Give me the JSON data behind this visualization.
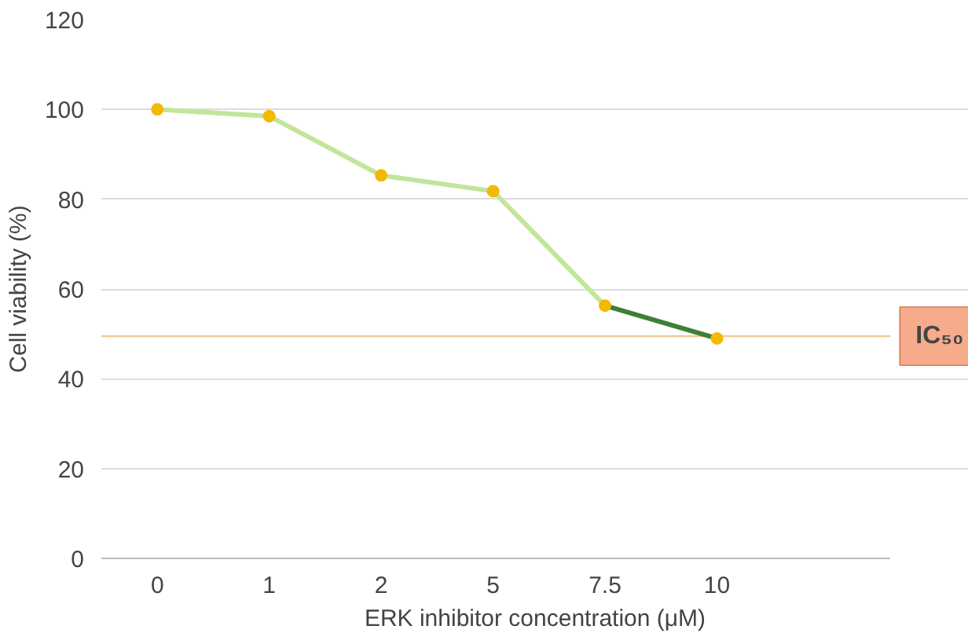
{
  "chart_data": {
    "type": "line",
    "xlabel": "ERK inhibitor concentration (μM)",
    "ylabel": "Cell viability (%)",
    "categories": [
      "0",
      "1",
      "2",
      "5",
      "7.5",
      "10"
    ],
    "series": [
      {
        "color": "#c3e59a",
        "values": [
          100,
          98.5,
          85.3,
          81.8,
          56.3,
          null
        ]
      },
      {
        "color": "#3f7f36",
        "values": [
          null,
          null,
          null,
          null,
          56.3,
          49
        ]
      },
      {
        "type": "scatter",
        "color": "#f5b800",
        "marker": "circle",
        "values": [
          100,
          98.5,
          85.3,
          81.8,
          56.3,
          49
        ]
      }
    ],
    "ylim": [
      0,
      120
    ],
    "yticks": [
      0,
      20,
      40,
      60,
      80,
      100,
      120
    ],
    "grid": "y",
    "ref_lines": [
      {
        "axis": "y",
        "value": 49.5,
        "label": "IC₅₀",
        "color": "#f3c996"
      }
    ]
  }
}
